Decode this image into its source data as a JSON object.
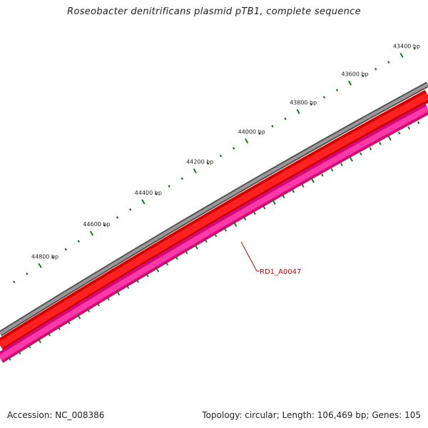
{
  "title": "Roseobacter denitrificans plasmid pTB1, complete sequence",
  "footer": {
    "accession": "Accession: NC_008386",
    "summary": "Topology: circular; Length: 106,469 bp; Genes: 105"
  },
  "ticks": [
    {
      "label": "43400 bp",
      "bp": 43400
    },
    {
      "label": "43600 bp",
      "bp": 43600
    },
    {
      "label": "43800 bp",
      "bp": 43800
    },
    {
      "label": "44000 bp",
      "bp": 44000
    },
    {
      "label": "44200 bp",
      "bp": 44200
    },
    {
      "label": "44400 bp",
      "bp": 44400
    },
    {
      "label": "44600 bp",
      "bp": 44600
    },
    {
      "label": "44800 bp",
      "bp": 44800
    }
  ],
  "gene": {
    "label": "RD1_A0047"
  },
  "colors": {
    "backbone": "#777777",
    "forward_gene": "#ee0000",
    "reverse_gene": "#ee1188",
    "tick": "#1a7a1a",
    "gene_label": "#cc0000"
  }
}
